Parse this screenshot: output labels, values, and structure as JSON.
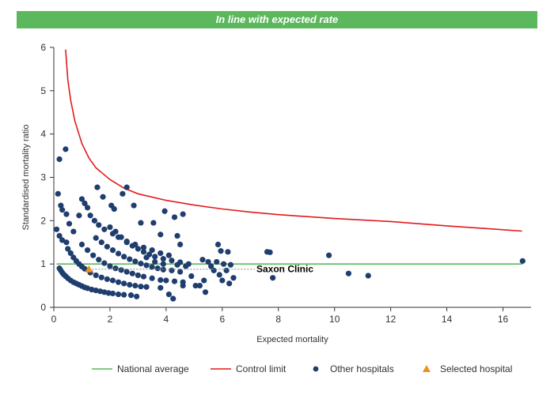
{
  "banner": {
    "text": "In line with expected rate"
  },
  "chart_data": {
    "type": "scatter",
    "title": "",
    "xlabel": "Expected mortality",
    "ylabel": "Standardised mortality ratio",
    "xlim": [
      0,
      17
    ],
    "ylim": [
      0,
      6
    ],
    "xticks": [
      0,
      2,
      4,
      6,
      8,
      10,
      12,
      14,
      16
    ],
    "yticks": [
      0,
      1,
      2,
      3,
      4,
      5,
      6
    ],
    "grid": false,
    "legend_position": "bottom",
    "colors": {
      "national_average": "#5cb85c",
      "control_limit": "#e31a1c",
      "other_hospitals": "#1f3d6e",
      "selected_hospital": "#f0901e"
    },
    "national_average": {
      "name": "National average",
      "y": 1
    },
    "control_limit": {
      "name": "Control limit",
      "points": [
        [
          0.42,
          5.95
        ],
        [
          0.5,
          5.25
        ],
        [
          0.6,
          4.78
        ],
        [
          0.75,
          4.3
        ],
        [
          1.0,
          3.78
        ],
        [
          1.25,
          3.45
        ],
        [
          1.5,
          3.22
        ],
        [
          2.0,
          2.95
        ],
        [
          2.5,
          2.75
        ],
        [
          3.0,
          2.62
        ],
        [
          4.0,
          2.47
        ],
        [
          5.0,
          2.36
        ],
        [
          6.0,
          2.27
        ],
        [
          7.0,
          2.2
        ],
        [
          8.0,
          2.14
        ],
        [
          10.0,
          2.05
        ],
        [
          12.0,
          1.98
        ],
        [
          14.0,
          1.88
        ],
        [
          16.68,
          1.76
        ]
      ]
    },
    "other_hospitals": {
      "name": "Other hospitals",
      "points": [
        [
          0.2,
          0.9
        ],
        [
          0.25,
          0.85
        ],
        [
          0.3,
          0.8
        ],
        [
          0.35,
          0.76
        ],
        [
          0.42,
          0.72
        ],
        [
          0.5,
          0.67
        ],
        [
          0.6,
          0.62
        ],
        [
          0.7,
          0.58
        ],
        [
          0.8,
          0.55
        ],
        [
          0.9,
          0.52
        ],
        [
          1.0,
          0.49
        ],
        [
          1.1,
          0.46
        ],
        [
          1.2,
          0.44
        ],
        [
          1.35,
          0.41
        ],
        [
          1.5,
          0.39
        ],
        [
          1.65,
          0.37
        ],
        [
          1.8,
          0.35
        ],
        [
          1.95,
          0.33
        ],
        [
          2.1,
          0.32
        ],
        [
          2.3,
          0.3
        ],
        [
          2.5,
          0.29
        ],
        [
          2.75,
          0.28
        ],
        [
          2.95,
          0.25
        ],
        [
          0.5,
          1.35
        ],
        [
          0.6,
          1.25
        ],
        [
          0.7,
          1.15
        ],
        [
          0.8,
          1.07
        ],
        [
          0.9,
          1.0
        ],
        [
          1.0,
          0.94
        ],
        [
          1.1,
          0.89
        ],
        [
          1.3,
          0.8
        ],
        [
          1.5,
          0.74
        ],
        [
          1.7,
          0.69
        ],
        [
          1.9,
          0.65
        ],
        [
          2.1,
          0.62
        ],
        [
          2.3,
          0.58
        ],
        [
          2.5,
          0.55
        ],
        [
          2.7,
          0.52
        ],
        [
          2.9,
          0.5
        ],
        [
          3.1,
          0.48
        ],
        [
          3.3,
          0.47
        ],
        [
          1.0,
          1.45
        ],
        [
          1.2,
          1.32
        ],
        [
          1.4,
          1.2
        ],
        [
          1.6,
          1.1
        ],
        [
          1.8,
          1.02
        ],
        [
          2.0,
          0.95
        ],
        [
          2.2,
          0.9
        ],
        [
          2.4,
          0.86
        ],
        [
          2.6,
          0.82
        ],
        [
          2.8,
          0.78
        ],
        [
          3.0,
          0.74
        ],
        [
          3.2,
          0.71
        ],
        [
          3.5,
          0.67
        ],
        [
          3.8,
          0.63
        ],
        [
          4.0,
          0.62
        ],
        [
          4.3,
          0.6
        ],
        [
          4.6,
          0.58
        ],
        [
          1.5,
          1.6
        ],
        [
          1.7,
          1.5
        ],
        [
          1.9,
          1.4
        ],
        [
          2.1,
          1.32
        ],
        [
          2.3,
          1.24
        ],
        [
          2.5,
          1.17
        ],
        [
          2.7,
          1.11
        ],
        [
          2.9,
          1.06
        ],
        [
          3.1,
          1.01
        ],
        [
          3.3,
          0.97
        ],
        [
          3.5,
          0.93
        ],
        [
          3.7,
          0.9
        ],
        [
          3.9,
          0.87
        ],
        [
          4.2,
          0.85
        ],
        [
          4.5,
          0.82
        ],
        [
          2.0,
          1.85
        ],
        [
          2.2,
          1.75
        ],
        [
          2.4,
          1.62
        ],
        [
          2.6,
          1.5
        ],
        [
          2.8,
          1.42
        ],
        [
          3.0,
          1.35
        ],
        [
          3.2,
          1.28
        ],
        [
          3.4,
          1.22
        ],
        [
          3.6,
          1.17
        ],
        [
          3.9,
          1.12
        ],
        [
          4.2,
          1.08
        ],
        [
          4.5,
          1.04
        ],
        [
          4.8,
          1.0
        ],
        [
          1.0,
          2.5
        ],
        [
          1.1,
          2.4
        ],
        [
          1.2,
          2.3
        ],
        [
          1.3,
          2.12
        ],
        [
          1.45,
          2.0
        ],
        [
          1.6,
          1.9
        ],
        [
          1.8,
          1.8
        ],
        [
          2.1,
          1.7
        ],
        [
          2.3,
          1.62
        ],
        [
          2.6,
          1.52
        ],
        [
          2.9,
          1.45
        ],
        [
          3.2,
          1.38
        ],
        [
          3.5,
          1.32
        ],
        [
          3.8,
          1.25
        ],
        [
          4.1,
          1.2
        ],
        [
          0.1,
          1.8
        ],
        [
          0.2,
          1.65
        ],
        [
          0.3,
          1.55
        ],
        [
          0.45,
          1.5
        ],
        [
          0.55,
          1.93
        ],
        [
          0.7,
          1.75
        ],
        [
          0.25,
          2.35
        ],
        [
          0.3,
          2.25
        ],
        [
          0.45,
          2.15
        ],
        [
          0.9,
          2.12
        ],
        [
          0.15,
          2.62
        ],
        [
          0.2,
          3.42
        ],
        [
          0.42,
          3.65
        ],
        [
          1.55,
          2.77
        ],
        [
          1.75,
          2.55
        ],
        [
          2.05,
          2.35
        ],
        [
          2.15,
          2.27
        ],
        [
          2.45,
          2.62
        ],
        [
          2.6,
          2.77
        ],
        [
          2.85,
          2.35
        ],
        [
          3.1,
          1.95
        ],
        [
          3.55,
          1.95
        ],
        [
          3.8,
          1.68
        ],
        [
          3.95,
          2.22
        ],
        [
          4.3,
          2.08
        ],
        [
          4.6,
          2.15
        ],
        [
          4.4,
          1.65
        ],
        [
          4.5,
          1.45
        ],
        [
          3.3,
          1.15
        ],
        [
          3.6,
          1.05
        ],
        [
          3.9,
          1.0
        ],
        [
          4.4,
          0.98
        ],
        [
          4.7,
          0.95
        ],
        [
          3.8,
          0.45
        ],
        [
          4.1,
          0.3
        ],
        [
          4.25,
          0.2
        ],
        [
          4.6,
          0.5
        ],
        [
          4.9,
          0.72
        ],
        [
          5.05,
          0.5
        ],
        [
          5.2,
          0.5
        ],
        [
          5.35,
          0.62
        ],
        [
          5.4,
          0.35
        ],
        [
          5.3,
          1.1
        ],
        [
          5.5,
          1.05
        ],
        [
          5.6,
          0.95
        ],
        [
          5.8,
          1.05
        ],
        [
          5.7,
          0.85
        ],
        [
          5.9,
          0.75
        ],
        [
          6.05,
          1.0
        ],
        [
          6.15,
          0.85
        ],
        [
          6.25,
          0.55
        ],
        [
          6.4,
          0.68
        ],
        [
          5.95,
          1.3
        ],
        [
          5.85,
          1.45
        ],
        [
          6.0,
          0.62
        ],
        [
          6.2,
          1.28
        ],
        [
          6.3,
          0.98
        ],
        [
          7.6,
          1.28
        ],
        [
          7.7,
          1.27
        ],
        [
          7.8,
          0.68
        ],
        [
          9.8,
          1.2
        ],
        [
          10.5,
          0.78
        ],
        [
          11.2,
          0.73
        ],
        [
          16.7,
          1.07
        ]
      ]
    },
    "selected_hospital": {
      "name": "Selected hospital",
      "x": 1.25,
      "y": 0.88,
      "label": "Saxon Clinic"
    }
  }
}
